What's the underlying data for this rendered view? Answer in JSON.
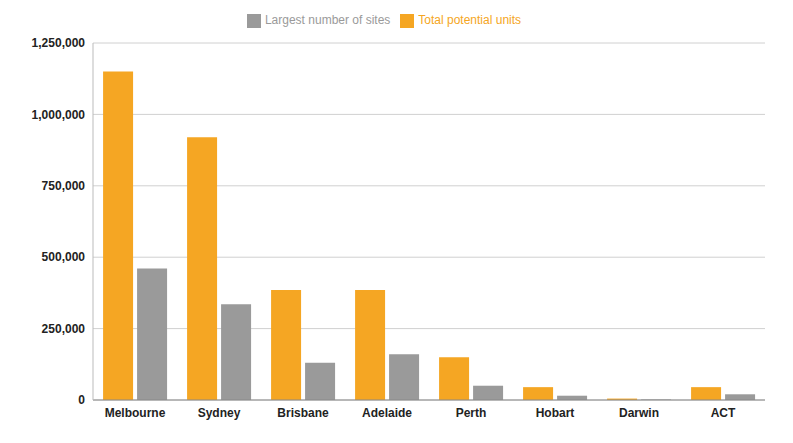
{
  "chart_data": {
    "type": "bar",
    "categories": [
      "Melbourne",
      "Sydney",
      "Brisbane",
      "Adelaide",
      "Perth",
      "Hobart",
      "Darwin",
      "ACT"
    ],
    "series": [
      {
        "name": "Total potential units",
        "color": "#f5a623",
        "values": [
          1150000,
          920000,
          385000,
          385000,
          150000,
          45000,
          5000,
          45000
        ]
      },
      {
        "name": "Largest number of sites",
        "color": "#9a9a9a",
        "values": [
          460000,
          335000,
          130000,
          160000,
          50000,
          15000,
          2000,
          20000
        ]
      }
    ],
    "ylim": [
      0,
      1250000
    ],
    "yticks": [
      0,
      {
        "value": 250000,
        "label": "250,000"
      },
      {
        "value": 500000,
        "label": "500,000"
      },
      {
        "value": 750000,
        "label": "750,000"
      },
      {
        "value": 1000000,
        "label": "1,000,000"
      },
      {
        "value": 1250000,
        "label": "1,250,000"
      }
    ],
    "grid": true,
    "legend": "top"
  }
}
